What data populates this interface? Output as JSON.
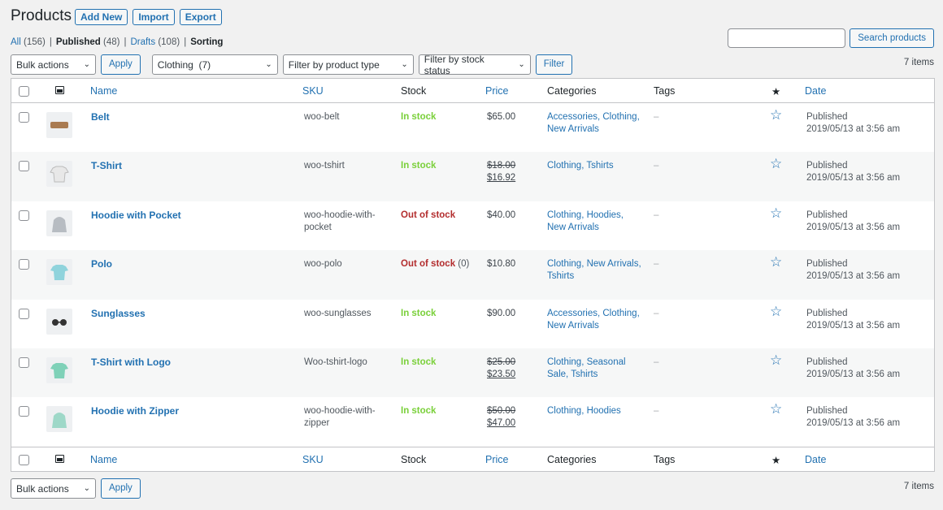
{
  "header": {
    "title": "Products",
    "add_new": "Add New",
    "import": "Import",
    "export": "Export"
  },
  "views": {
    "all_label": "All",
    "all_count": "(156)",
    "published_label": "Published",
    "published_count": "(48)",
    "drafts_label": "Drafts",
    "drafts_count": "(108)",
    "sorting_label": "Sorting"
  },
  "search": {
    "value": "",
    "button": "Search products"
  },
  "filters": {
    "bulk_actions": "Bulk actions",
    "apply": "Apply",
    "category": "Clothing  (7)",
    "product_type": "Filter by product type",
    "stock_status": "Filter by stock status",
    "filter": "Filter"
  },
  "items_count": "7 items",
  "columns": {
    "name": "Name",
    "sku": "SKU",
    "stock": "Stock",
    "price": "Price",
    "categories": "Categories",
    "tags": "Tags",
    "featured": "★",
    "date": "Date"
  },
  "icons": {
    "thumbnail_header": "image-icon",
    "featured": "star-outline-icon"
  },
  "rows": [
    {
      "name": "Belt",
      "sku": "woo-belt",
      "stock": "In stock",
      "stock_qty": "",
      "stock_class": "in",
      "price": "$65.00",
      "old_price": "",
      "sale_price": "",
      "categories": "Accessories, Clothing, New Arrivals",
      "tags": "–",
      "status": "Published",
      "date": "2019/05/13 at 3:56 am"
    },
    {
      "name": "T-Shirt",
      "sku": "woo-tshirt",
      "stock": "In stock",
      "stock_qty": "",
      "stock_class": "in",
      "price": "",
      "old_price": "$18.00",
      "sale_price": "$16.92",
      "categories": "Clothing, Tshirts",
      "tags": "–",
      "status": "Published",
      "date": "2019/05/13 at 3:56 am"
    },
    {
      "name": "Hoodie with Pocket",
      "sku": "woo-hoodie-with-pocket",
      "stock": "Out of stock",
      "stock_qty": "",
      "stock_class": "out",
      "price": "$40.00",
      "old_price": "",
      "sale_price": "",
      "categories": "Clothing, Hoodies, New Arrivals",
      "tags": "–",
      "status": "Published",
      "date": "2019/05/13 at 3:56 am"
    },
    {
      "name": "Polo",
      "sku": "woo-polo",
      "stock": "Out of stock",
      "stock_qty": "(0)",
      "stock_class": "out",
      "price": "$10.80",
      "old_price": "",
      "sale_price": "",
      "categories": "Clothing, New Arrivals, Tshirts",
      "tags": "–",
      "status": "Published",
      "date": "2019/05/13 at 3:56 am"
    },
    {
      "name": "Sunglasses",
      "sku": "woo-sunglasses",
      "stock": "In stock",
      "stock_qty": "",
      "stock_class": "in",
      "price": "$90.00",
      "old_price": "",
      "sale_price": "",
      "categories": "Accessories, Clothing, New Arrivals",
      "tags": "–",
      "status": "Published",
      "date": "2019/05/13 at 3:56 am"
    },
    {
      "name": "T-Shirt with Logo",
      "sku": "Woo-tshirt-logo",
      "stock": "In stock",
      "stock_qty": "",
      "stock_class": "in",
      "price": "",
      "old_price": "$25.00",
      "sale_price": "$23.50",
      "categories": "Clothing, Seasonal Sale, Tshirts",
      "tags": "–",
      "status": "Published",
      "date": "2019/05/13 at 3:56 am"
    },
    {
      "name": "Hoodie with Zipper",
      "sku": "woo-hoodie-with-zipper",
      "stock": "In stock",
      "stock_qty": "",
      "stock_class": "in",
      "price": "",
      "old_price": "$50.00",
      "sale_price": "$47.00",
      "categories": "Clothing, Hoodies",
      "tags": "–",
      "status": "Published",
      "date": "2019/05/13 at 3:56 am"
    }
  ],
  "colors": {
    "accent": "#2271b1",
    "in_stock": "#7ad03a",
    "out_of_stock": "#b32d2e",
    "row_alt": "#f6f7f7"
  }
}
